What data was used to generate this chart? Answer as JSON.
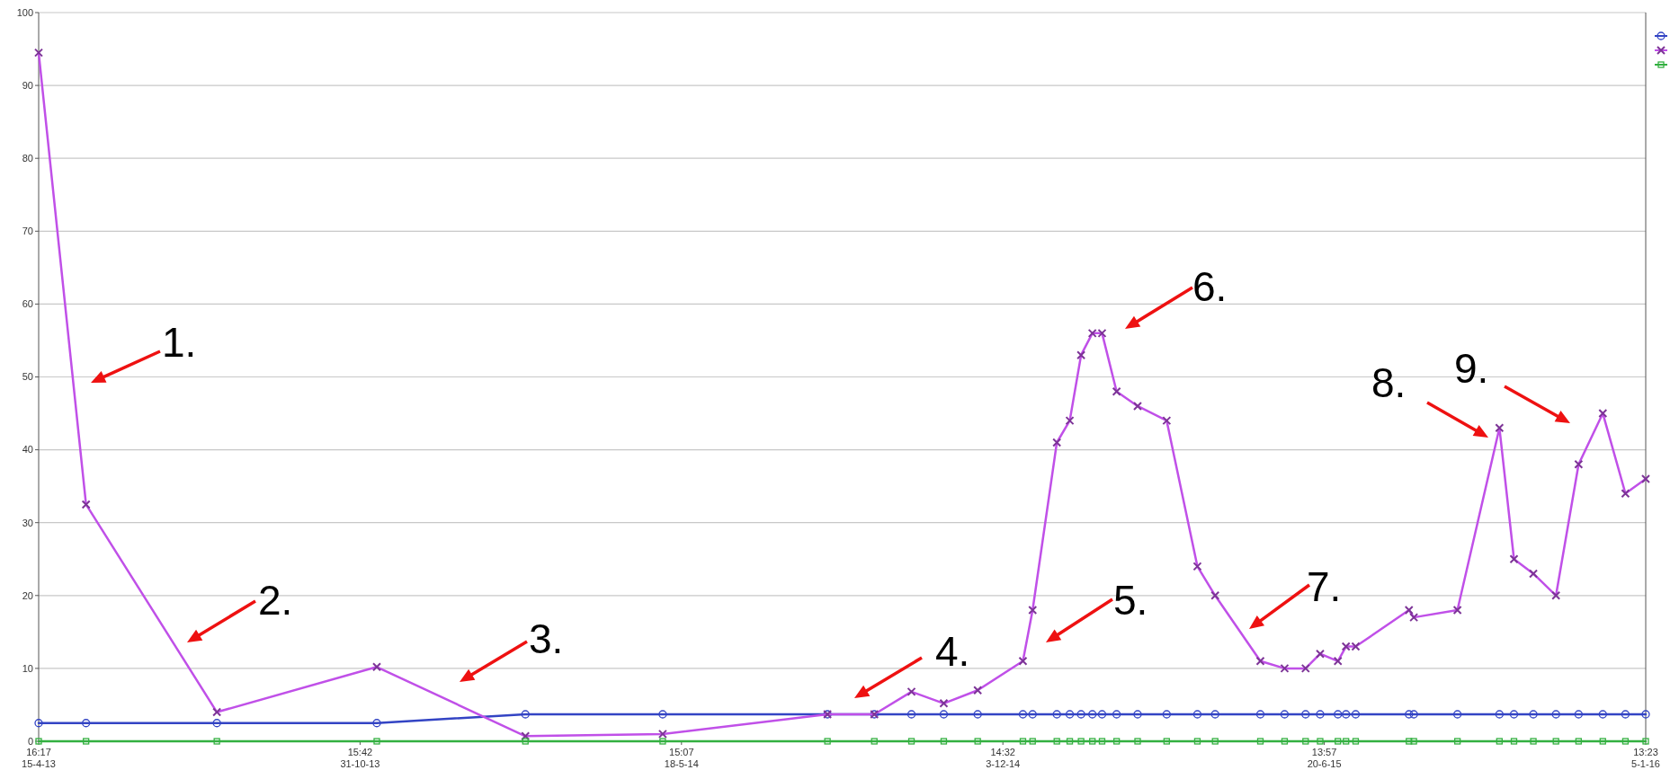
{
  "chart_data": {
    "type": "line",
    "x": [
      "2013-04-15T16:17",
      "2013-05-15",
      "2013-08-04",
      "2013-11-11",
      "2014-02-11",
      "2014-05-07",
      "2014-08-17",
      "2014-09-15",
      "2014-10-08",
      "2014-10-28",
      "2014-11-18",
      "2014-12-16",
      "2014-12-22",
      "2015-01-06",
      "2015-01-14",
      "2015-01-21",
      "2015-01-28",
      "2015-02-03",
      "2015-02-12",
      "2015-02-25",
      "2015-03-15",
      "2015-04-03",
      "2015-04-14",
      "2015-05-12",
      "2015-05-27",
      "2015-06-09",
      "2015-06-18",
      "2015-06-29",
      "2015-07-04",
      "2015-07-10",
      "2015-08-12",
      "2015-08-15",
      "2015-09-11",
      "2015-10-07",
      "2015-10-16",
      "2015-10-28",
      "2015-11-11",
      "2015-11-25",
      "2015-12-10",
      "2015-12-24",
      "2016-01-05T13:23"
    ],
    "series": [
      {
        "color": "#3344c4",
        "marker": "circle",
        "values": [
          2.5,
          2.5,
          2.5,
          2.5,
          3.7,
          3.7,
          3.7,
          3.7,
          3.7,
          3.7,
          3.7,
          3.7,
          3.7,
          3.7,
          3.7,
          3.7,
          3.7,
          3.7,
          3.7,
          3.7,
          3.7,
          3.7,
          3.7,
          3.7,
          3.7,
          3.7,
          3.7,
          3.7,
          3.7,
          3.7,
          3.7,
          3.7,
          3.7,
          3.7,
          3.7,
          3.7,
          3.7,
          3.7,
          3.7,
          3.7,
          3.7
        ]
      },
      {
        "color": "#c050e8",
        "marker": "cross",
        "values": [
          94.5,
          32.5,
          4,
          10.2,
          0.7,
          1,
          3.7,
          3.7,
          6.8,
          5.2,
          7,
          11,
          18,
          41,
          44,
          53,
          56,
          56,
          48,
          46,
          44,
          24,
          20,
          11,
          10,
          10,
          12,
          11,
          13,
          13,
          18,
          17,
          18,
          43,
          25,
          23,
          20,
          38,
          45,
          34,
          36
        ]
      },
      {
        "color": "#33b040",
        "marker": "square",
        "values": [
          0,
          0,
          0,
          0,
          0,
          0,
          0,
          0,
          0,
          0,
          0,
          0,
          0,
          0,
          0,
          0,
          0,
          0,
          0,
          0,
          0,
          0,
          0,
          0,
          0,
          0,
          0,
          0,
          0,
          0,
          0,
          0,
          0,
          0,
          0,
          0,
          0,
          0,
          0,
          0,
          0
        ]
      }
    ],
    "xlim": [
      "2013-04-15T16:17",
      "2016-01-05T13:23"
    ],
    "xticks": [
      {
        "value": "2013-04-15T16:17",
        "label": "16:17\n15-4-13"
      },
      {
        "value": "2013-10-31T15:42",
        "label": "15:42\n31-10-13"
      },
      {
        "value": "2014-05-18T15:07",
        "label": "15:07\n18-5-14"
      },
      {
        "value": "2014-12-03T14:32",
        "label": "14:32\n3-12-14"
      },
      {
        "value": "2015-06-20T13:57",
        "label": "13:57\n20-6-15"
      },
      {
        "value": "2016-01-05T13:23",
        "label": "13:23\n5-1-16"
      }
    ],
    "ylim": [
      0,
      100
    ],
    "yticks": [
      0,
      10,
      20,
      30,
      40,
      50,
      60,
      70,
      80,
      90,
      100
    ],
    "grid": "y",
    "annotations": [
      "1.",
      "2.",
      "3.",
      "4.",
      "5.",
      "6.",
      "7.",
      "8.",
      "9."
    ]
  }
}
